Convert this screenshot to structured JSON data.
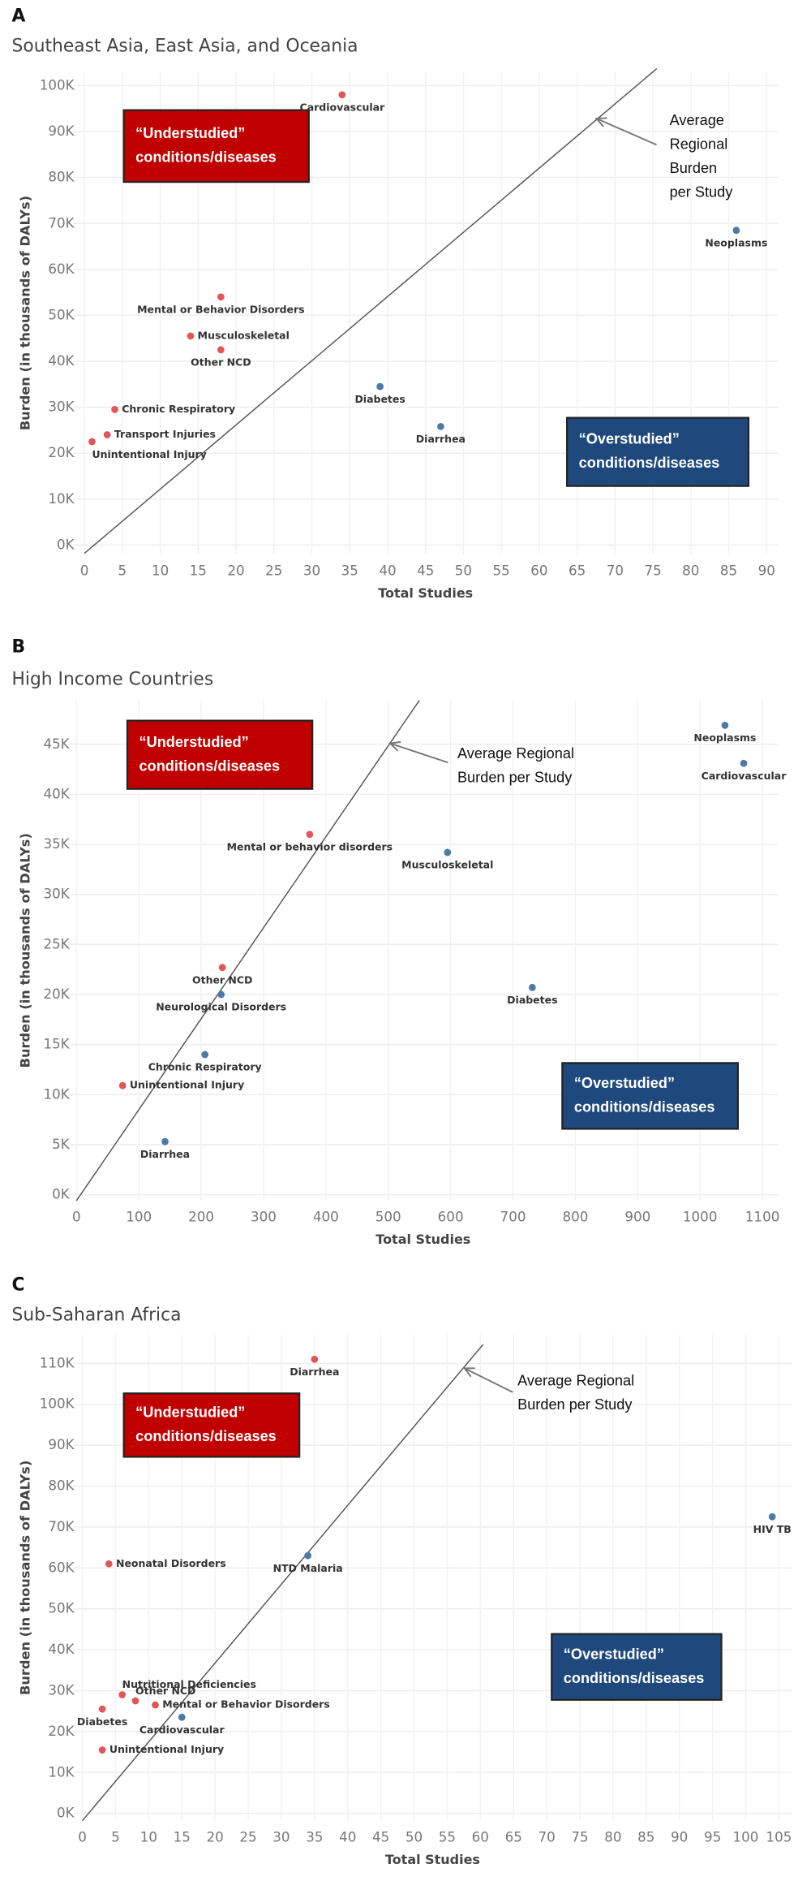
{
  "chart_data": [
    {
      "type": "scatter",
      "panel": "A",
      "title": "Southeast Asia, East Asia, and Oceania",
      "x_label": "Total Studies",
      "y_label": "Burden (in thousands of DALYs)",
      "xlim": [
        -1.5,
        91.5
      ],
      "ylim": [
        -2000,
        103000
      ],
      "xticks": [
        0,
        5,
        10,
        15,
        20,
        25,
        30,
        35,
        40,
        45,
        50,
        55,
        60,
        65,
        70,
        75,
        80,
        85,
        90
      ],
      "yticks": [
        {
          "value": 0,
          "label": "0K"
        },
        {
          "value": 10000,
          "label": "10K"
        },
        {
          "value": 20000,
          "label": "20K"
        },
        {
          "value": 30000,
          "label": "30K"
        },
        {
          "value": 40000,
          "label": "40K"
        },
        {
          "value": 50000,
          "label": "50K"
        },
        {
          "value": 60000,
          "label": "60K"
        },
        {
          "value": 70000,
          "label": "70K"
        },
        {
          "value": 80000,
          "label": "80K"
        },
        {
          "value": 90000,
          "label": "90K"
        },
        {
          "value": 100000,
          "label": "100K"
        }
      ],
      "grid": true,
      "labels": [
        "Cardiovascular",
        "Neoplasms",
        "Mental or Behavior Disorders",
        "Musculoskeletal",
        "Other NCD",
        "Diabetes",
        "Diarrhea",
        "Chronic Respiratory",
        "Transport Injuries",
        "Unintentional Injury"
      ],
      "x": [
        34,
        86,
        18,
        14,
        18,
        39,
        47,
        4,
        3,
        1
      ],
      "y": [
        98000,
        68500,
        54000,
        45500,
        42500,
        34500,
        25800,
        29500,
        24000,
        22500
      ],
      "colors": [
        "#e15759",
        "#4e79a7",
        "#e15759",
        "#e15759",
        "#e15759",
        "#4e79a7",
        "#4e79a7",
        "#e15759",
        "#e15759",
        "#e15759"
      ],
      "reference_line": {
        "label_lines": [
          "Average",
          "Regional",
          "Burden",
          "per Study"
        ],
        "x": [
          0,
          75.5
        ],
        "y": [
          -1800,
          103700
        ]
      },
      "regions": [
        {
          "label_lines": [
            "“Understudied”",
            "conditions/diseases"
          ],
          "color": "#c00000"
        },
        {
          "label_lines": [
            "“Overstudied”",
            "conditions/diseases"
          ],
          "color": "#1f497d"
        }
      ]
    },
    {
      "type": "scatter",
      "panel": "B",
      "title": "High Income Countries",
      "x_label": "Total Studies",
      "y_label": "Burden (in thousands of DALYs)",
      "xlim": [
        -13,
        1125
      ],
      "ylim": [
        -600,
        49400
      ],
      "xticks": [
        0,
        100,
        200,
        300,
        400,
        500,
        600,
        700,
        800,
        900,
        1000,
        1100
      ],
      "yticks": [
        {
          "value": 0,
          "label": "0K"
        },
        {
          "value": 5000,
          "label": "5K"
        },
        {
          "value": 10000,
          "label": "10K"
        },
        {
          "value": 15000,
          "label": "15K"
        },
        {
          "value": 20000,
          "label": "20K"
        },
        {
          "value": 25000,
          "label": "25K"
        },
        {
          "value": 30000,
          "label": "30K"
        },
        {
          "value": 35000,
          "label": "35K"
        },
        {
          "value": 40000,
          "label": "40K"
        },
        {
          "value": 45000,
          "label": "45K"
        }
      ],
      "grid": true,
      "labels": [
        "Neoplasms",
        "Cardiovascular",
        "Mental or behavior disorders",
        "Musculoskeletal",
        "Diabetes",
        "Other NCD",
        "Neurological Disorders",
        "Chronic Respiratory",
        "Unintentional Injury",
        "Diarrhea"
      ],
      "x": [
        1040,
        1070,
        374,
        595,
        731,
        234,
        232,
        206,
        74,
        142
      ],
      "y": [
        46900,
        43100,
        36000,
        34200,
        20700,
        22700,
        20000,
        14000,
        10900,
        5300
      ],
      "colors": [
        "#4e79a7",
        "#4e79a7",
        "#e15759",
        "#4e79a7",
        "#4e79a7",
        "#e15759",
        "#4e79a7",
        "#4e79a7",
        "#e15759",
        "#4e79a7"
      ],
      "reference_line": {
        "label_lines": [
          "Average Regional",
          "Burden per Study"
        ],
        "x": [
          0,
          550
        ],
        "y": [
          -600,
          49400
        ]
      },
      "regions": [
        {
          "label_lines": [
            "“Understudied”",
            "conditions/diseases"
          ],
          "color": "#c00000"
        },
        {
          "label_lines": [
            "“Overstudied”",
            "conditions/diseases"
          ],
          "color": "#1f497d"
        }
      ]
    },
    {
      "type": "scatter",
      "panel": "C",
      "title": "Sub-Saharan Africa",
      "x_label": "Total Studies",
      "y_label": "Burden (in thousands of DALYs)",
      "xlim": [
        -1.4,
        107
      ],
      "ylim": [
        -1800,
        117000
      ],
      "xticks": [
        0,
        5,
        10,
        15,
        20,
        25,
        30,
        35,
        40,
        45,
        50,
        55,
        60,
        65,
        70,
        75,
        80,
        85,
        90,
        95,
        100,
        105
      ],
      "yticks": [
        {
          "value": 0,
          "label": "0K"
        },
        {
          "value": 10000,
          "label": "10K"
        },
        {
          "value": 20000,
          "label": "20K"
        },
        {
          "value": 30000,
          "label": "30K"
        },
        {
          "value": 40000,
          "label": "40K"
        },
        {
          "value": 50000,
          "label": "50K"
        },
        {
          "value": 60000,
          "label": "60K"
        },
        {
          "value": 70000,
          "label": "70K"
        },
        {
          "value": 80000,
          "label": "80K"
        },
        {
          "value": 90000,
          "label": "90K"
        },
        {
          "value": 100000,
          "label": "100K"
        },
        {
          "value": 110000,
          "label": "110K"
        }
      ],
      "grid": true,
      "labels": [
        "Diarrhea",
        "HIV TB",
        "NTD Malaria",
        "Neonatal Disorders",
        "Nutritional Deficiencies",
        "Other NCD",
        "Mental or Behavior Disorders",
        "Diabetes",
        "Cardiovascular",
        "Unintentional Injury"
      ],
      "x": [
        35,
        104,
        34,
        4,
        6,
        8,
        11,
        3,
        15,
        3
      ],
      "y": [
        111000,
        72500,
        63000,
        61000,
        29000,
        27500,
        26500,
        25500,
        23500,
        15500
      ],
      "colors": [
        "#e15759",
        "#4e79a7",
        "#4e79a7",
        "#e15759",
        "#e15759",
        "#e15759",
        "#e15759",
        "#e15759",
        "#4e79a7",
        "#e15759"
      ],
      "reference_line": {
        "label_lines": [
          "Average Regional",
          "Burden per Study"
        ],
        "x": [
          0,
          60.4
        ],
        "y": [
          -1800,
          114600
        ]
      },
      "regions": [
        {
          "label_lines": [
            "“Understudied”",
            "conditions/diseases"
          ],
          "color": "#c00000"
        },
        {
          "label_lines": [
            "“Overstudied”",
            "conditions/diseases"
          ],
          "color": "#1f497d"
        }
      ]
    }
  ]
}
